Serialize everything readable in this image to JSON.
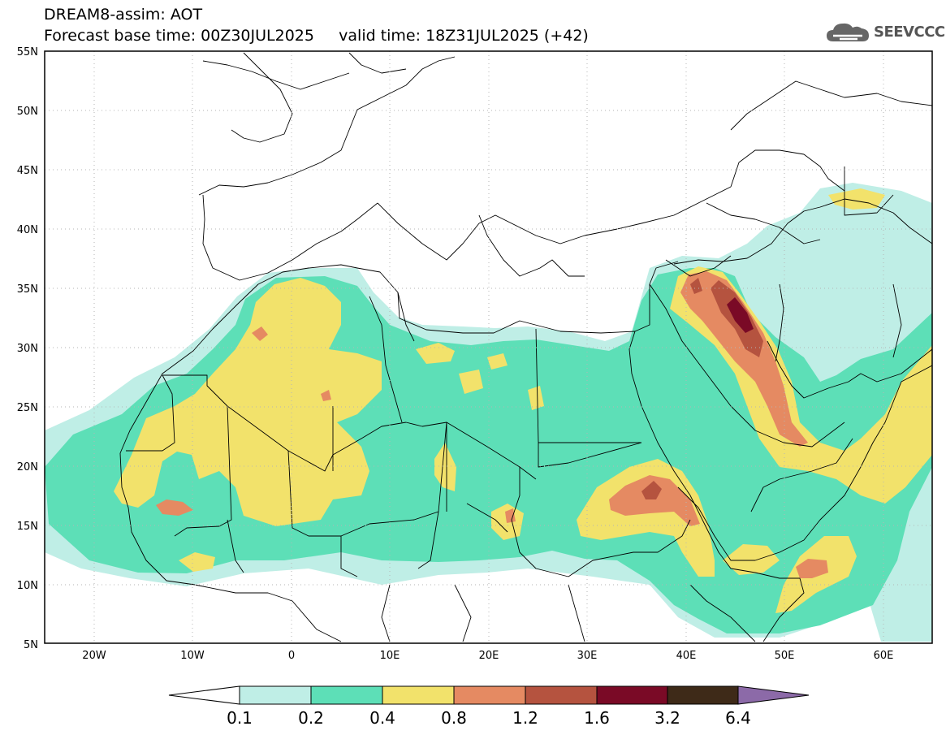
{
  "header": {
    "line1": "DREAM8-assim: AOT",
    "line2": "Forecast base time: 00Z30JUL2025     valid time: 18Z31JUL2025 (+42)"
  },
  "logo": {
    "text": "SEEVCCC",
    "icon": "cloud-icon"
  },
  "map": {
    "lon_range": [
      -25,
      65
    ],
    "lat_range": [
      5,
      55
    ],
    "lat_ticks": [
      "55N",
      "50N",
      "45N",
      "40N",
      "35N",
      "30N",
      "25N",
      "20N",
      "15N",
      "10N",
      "5N"
    ],
    "lon_ticks": [
      "20W",
      "10W",
      "0",
      "10E",
      "20E",
      "30E",
      "40E",
      "50E",
      "60E"
    ]
  },
  "colorbar": {
    "labels": [
      "0.1",
      "0.2",
      "0.4",
      "0.8",
      "1.2",
      "1.6",
      "3.2",
      "6.4"
    ],
    "colors": [
      "#ffffff",
      "#bfeee6",
      "#5ddfb7",
      "#f2e26b",
      "#e58a62",
      "#b5533f",
      "#7a0a26",
      "#3e2a18",
      "#8c6aa8"
    ]
  }
}
